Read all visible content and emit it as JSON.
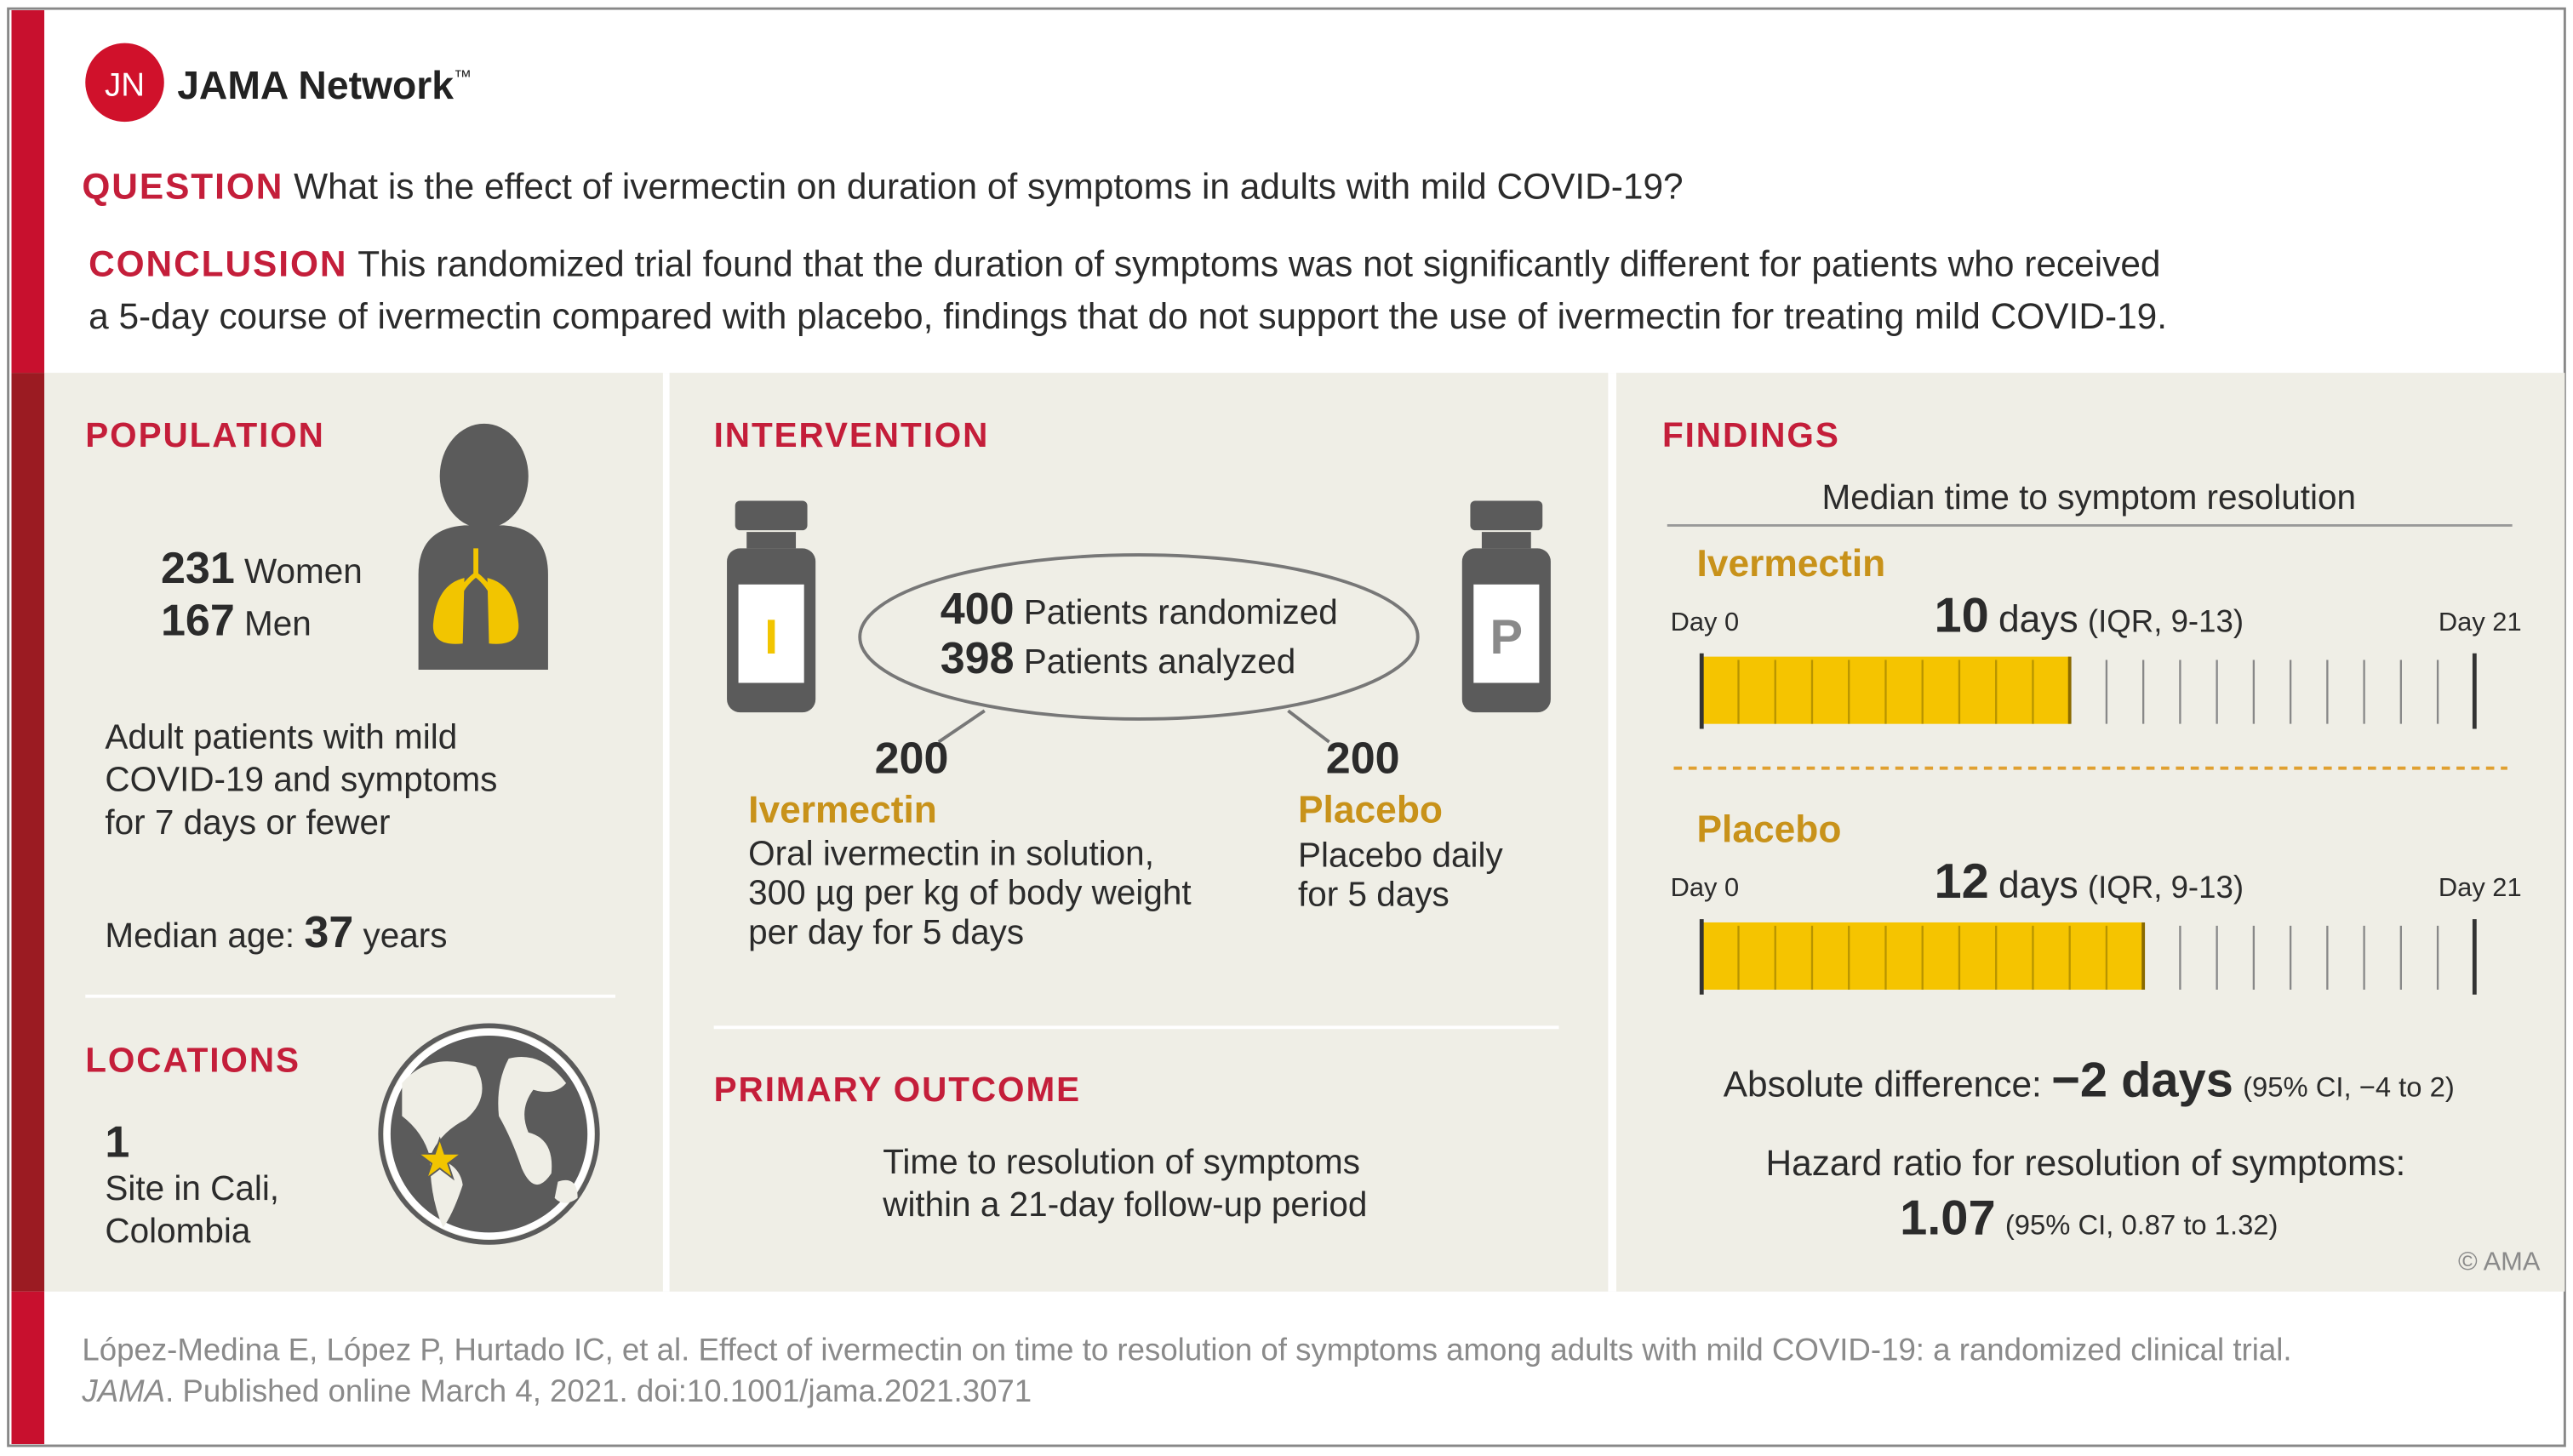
{
  "logo": {
    "initials": "JN",
    "name": "JAMA Network",
    "trademark": "™"
  },
  "question": {
    "label": "QUESTION",
    "text": "What is the effect of ivermectin on duration of symptoms in adults with mild COVID-19?"
  },
  "conclusion": {
    "label": "CONCLUSION",
    "lines": [
      "This randomized trial found that the duration of symptoms was not significantly different for patients who received",
      "a 5-day course of ivermectin compared with placebo, findings that do not support the use of ivermectin for treating mild COVID-19."
    ]
  },
  "population": {
    "heading": "POPULATION",
    "groups": [
      {
        "count": 231,
        "label": "Women"
      },
      {
        "count": 167,
        "label": "Men"
      }
    ],
    "description": [
      "Adult patients with mild",
      "COVID-19 and symptoms",
      "for 7 days or fewer"
    ],
    "median_age": {
      "label": "Median age:",
      "value": 37,
      "unit": "years"
    }
  },
  "locations": {
    "heading": "LOCATIONS",
    "count": 1,
    "description": [
      "Site in Cali,",
      "Colombia"
    ]
  },
  "intervention": {
    "heading": "INTERVENTION",
    "vials": [
      "I",
      "P"
    ],
    "totals": [
      {
        "count": 400,
        "label": "Patients randomized"
      },
      {
        "count": 398,
        "label": "Patients analyzed"
      }
    ],
    "arms": [
      {
        "count": 200,
        "name": "Ivermectin",
        "description": [
          "Oral ivermectin in solution,",
          "300 µg per kg of body weight",
          "per day for 5 days"
        ]
      },
      {
        "count": 200,
        "name": "Placebo",
        "description": [
          "Placebo daily",
          "for 5 days"
        ]
      }
    ]
  },
  "primary_outcome": {
    "heading": "PRIMARY OUTCOME",
    "lines": [
      "Time to resolution of symptoms",
      "within a 21-day follow-up period"
    ]
  },
  "findings": {
    "heading": "FINDINGS",
    "subtitle": "Median time to symptom resolution",
    "timeline": {
      "start": {
        "value": 0,
        "label": "Day 0"
      },
      "end": {
        "value": 21,
        "label": "Day 21"
      }
    },
    "arms": [
      {
        "name": "Ivermectin",
        "days": 10,
        "unit": "days",
        "iqr": "(IQR, 9-13)"
      },
      {
        "name": "Placebo",
        "days": 12,
        "unit": "days",
        "iqr": "(IQR, 9-13)"
      }
    ],
    "absolute_difference": {
      "label": "Absolute difference:",
      "value": "−2 days",
      "ci": "(95% CI, −4 to 2)"
    },
    "hazard_ratio": {
      "label": "Hazard ratio for resolution of symptoms:",
      "value": "1.07",
      "ci": "(95% CI, 0.87 to 1.32)"
    },
    "copyright": "© AMA"
  },
  "citation": {
    "line1": "López-Medina E, López P, Hurtado IC, et al. Effect of ivermectin on time to resolution of symptoms among adults with mild COVID-19: a randomized clinical trial.",
    "journal": "JAMA",
    "line2": ". Published online March 4, 2021. doi:10.1001/jama.2021.3071"
  }
}
